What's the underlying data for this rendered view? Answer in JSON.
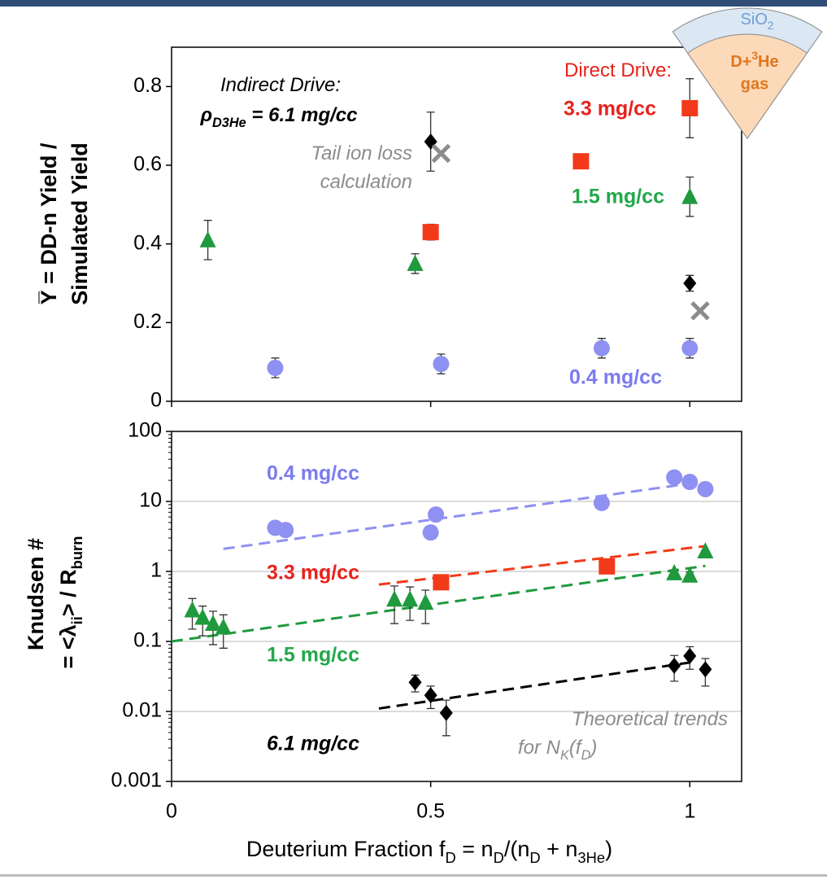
{
  "chart_data": [
    {
      "type": "scatter",
      "y_label": [
        "Y̅ = DD-n Yield /",
        "Simulated Yield"
      ],
      "xlim": [
        0,
        1.1
      ],
      "xticks": [
        0,
        0.5,
        1
      ],
      "ylim": [
        0,
        0.9
      ],
      "yticks": [
        0,
        0.2,
        0.4,
        0.6,
        0.8
      ],
      "grid": false,
      "annotations": [
        [
          "Indirect Drive:"
        ],
        [
          "ρ",
          "D3He",
          " = 6.1 mg/cc"
        ],
        [
          "Tail ion loss"
        ],
        [
          "calculation"
        ],
        [
          "Direct Drive:"
        ]
      ],
      "series": [
        {
          "marker": "diamond",
          "color": "#000000",
          "x": [
            0.5,
            1.0
          ],
          "values": [
            0.66,
            0.3
          ],
          "errors": [
            0.075,
            0.02
          ]
        },
        {
          "marker": "x",
          "color": "#8c8c8c",
          "x": [
            0.52,
            1.02
          ],
          "values": [
            0.63,
            0.23
          ],
          "errors": [
            null,
            null
          ]
        },
        {
          "name": "3.3 mg/cc",
          "marker": "square",
          "color": "#f23a1a",
          "x": [
            0.5,
            0.79,
            1.0
          ],
          "values": [
            0.43,
            0.61,
            0.745
          ],
          "errors": [
            0.02,
            0.012,
            0.075
          ]
        },
        {
          "name": "1.5 mg/cc",
          "marker": "triangle",
          "color": "#1f9a3e",
          "x": [
            0.07,
            0.47,
            1.0
          ],
          "values": [
            0.41,
            0.35,
            0.52
          ],
          "errors": [
            0.05,
            0.025,
            0.05
          ]
        },
        {
          "name": "0.4 mg/cc",
          "marker": "circle",
          "color": "#8e90f2",
          "x": [
            0.2,
            0.52,
            0.83,
            1.0
          ],
          "values": [
            0.085,
            0.095,
            0.135,
            0.135
          ],
          "errors": [
            0.025,
            0.025,
            0.025,
            0.025
          ]
        }
      ]
    },
    {
      "type": "scatter",
      "y_label": [
        [
          "Knudsen #"
        ],
        [
          "= <λ",
          "ii",
          "> / R",
          "burn"
        ]
      ],
      "x_label": [
        "Deuterium Fraction f",
        "D",
        " = n",
        "D",
        "/(n",
        "D",
        " + n",
        "3He",
        ")"
      ],
      "xlim": [
        0,
        1.1
      ],
      "xticks": [
        0,
        0.5,
        1
      ],
      "ylim": [
        0.001,
        100
      ],
      "yticks": [
        0.001,
        0.01,
        0.1,
        1,
        10,
        100
      ],
      "log_y": true,
      "grid": true,
      "annotations": [
        [
          "Theoretical trends"
        ],
        [
          "for N",
          "K",
          "(f",
          "D",
          ")"
        ]
      ],
      "series": [
        {
          "name": "0.4 mg/cc",
          "marker": "circle",
          "color": "#8e90f2",
          "x": [
            0.2,
            0.22,
            0.5,
            0.51,
            0.83,
            0.97,
            1.0,
            1.03
          ],
          "values": [
            4.2,
            3.9,
            3.6,
            6.5,
            9.5,
            22,
            19,
            15
          ],
          "errors": [
            null,
            null,
            null,
            null,
            null,
            null,
            null,
            null
          ]
        },
        {
          "name": "3.3 mg/cc",
          "marker": "square",
          "color": "#f23a1a",
          "x": [
            0.52,
            0.84
          ],
          "values": [
            0.7,
            1.18
          ],
          "errors": [
            null,
            null
          ]
        },
        {
          "name": "1.5 mg/cc",
          "marker": "triangle",
          "color": "#1f9a3e",
          "x": [
            0.04,
            0.06,
            0.08,
            0.1,
            0.43,
            0.46,
            0.49,
            0.97,
            1.0,
            1.03
          ],
          "values": [
            0.28,
            0.22,
            0.18,
            0.16,
            0.4,
            0.4,
            0.36,
            0.95,
            0.88,
            1.95
          ],
          "errors": [
            0.13,
            0.1,
            0.09,
            0.08,
            0.22,
            0.2,
            0.18,
            0.1,
            0.1,
            null
          ]
        },
        {
          "name": "6.1 mg/cc",
          "marker": "diamond",
          "color": "#000000",
          "x": [
            0.47,
            0.5,
            0.53,
            0.97,
            1.0,
            1.03
          ],
          "values": [
            0.026,
            0.017,
            0.0095,
            0.045,
            0.062,
            0.04
          ],
          "errors": [
            0.007,
            0.006,
            0.005,
            0.018,
            0.022,
            0.017
          ]
        }
      ],
      "trends": [
        {
          "color": "#8e90f2",
          "x": [
            0.1,
            1.0
          ],
          "values": [
            2.1,
            18
          ]
        },
        {
          "color": "#f23a1a",
          "x": [
            0.4,
            1.03
          ],
          "values": [
            0.65,
            2.3
          ]
        },
        {
          "color": "#1f9a3e",
          "x": [
            0,
            1.03
          ],
          "values": [
            0.1,
            1.2
          ]
        },
        {
          "color": "#000000",
          "x": [
            0.4,
            1.0
          ],
          "values": [
            0.011,
            0.05
          ]
        }
      ]
    }
  ],
  "inset": {
    "shell": [
      "SiO",
      "2"
    ],
    "gas": [
      "D+",
      "3",
      "He"
    ],
    "gas_word": "gas"
  }
}
